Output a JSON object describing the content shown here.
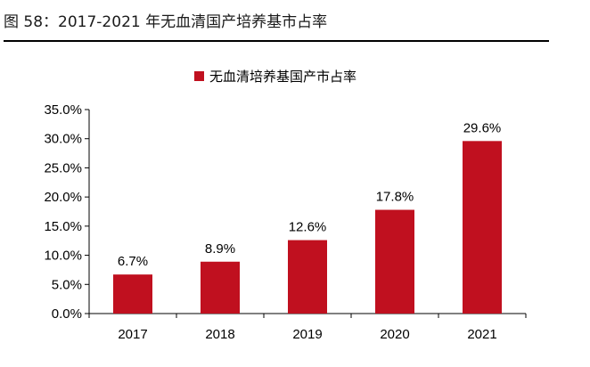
{
  "figure_title": "图 58：2017-2021 年无血清国产培养基市占率",
  "colors": {
    "bar": "#c0101f",
    "axis": "#000000",
    "rule": "#000000"
  },
  "chart_data": {
    "type": "bar",
    "title": "",
    "xlabel": "",
    "ylabel": "",
    "legend": {
      "position": "top-center"
    },
    "grid": false,
    "categories": [
      "2017",
      "2018",
      "2019",
      "2020",
      "2021"
    ],
    "series": [
      {
        "name": "无血清培养基国产市占率",
        "values": [
          6.7,
          8.9,
          12.6,
          17.8,
          29.6
        ],
        "data_labels": [
          "6.7%",
          "8.9%",
          "12.6%",
          "17.8%",
          "29.6%"
        ]
      }
    ],
    "ylim": [
      0,
      35
    ],
    "yticks": [
      0,
      5,
      10,
      15,
      20,
      25,
      30,
      35
    ],
    "ytick_labels": [
      "0.0%",
      "5.0%",
      "10.0%",
      "15.0%",
      "20.0%",
      "25.0%",
      "30.0%",
      "35.0%"
    ]
  }
}
